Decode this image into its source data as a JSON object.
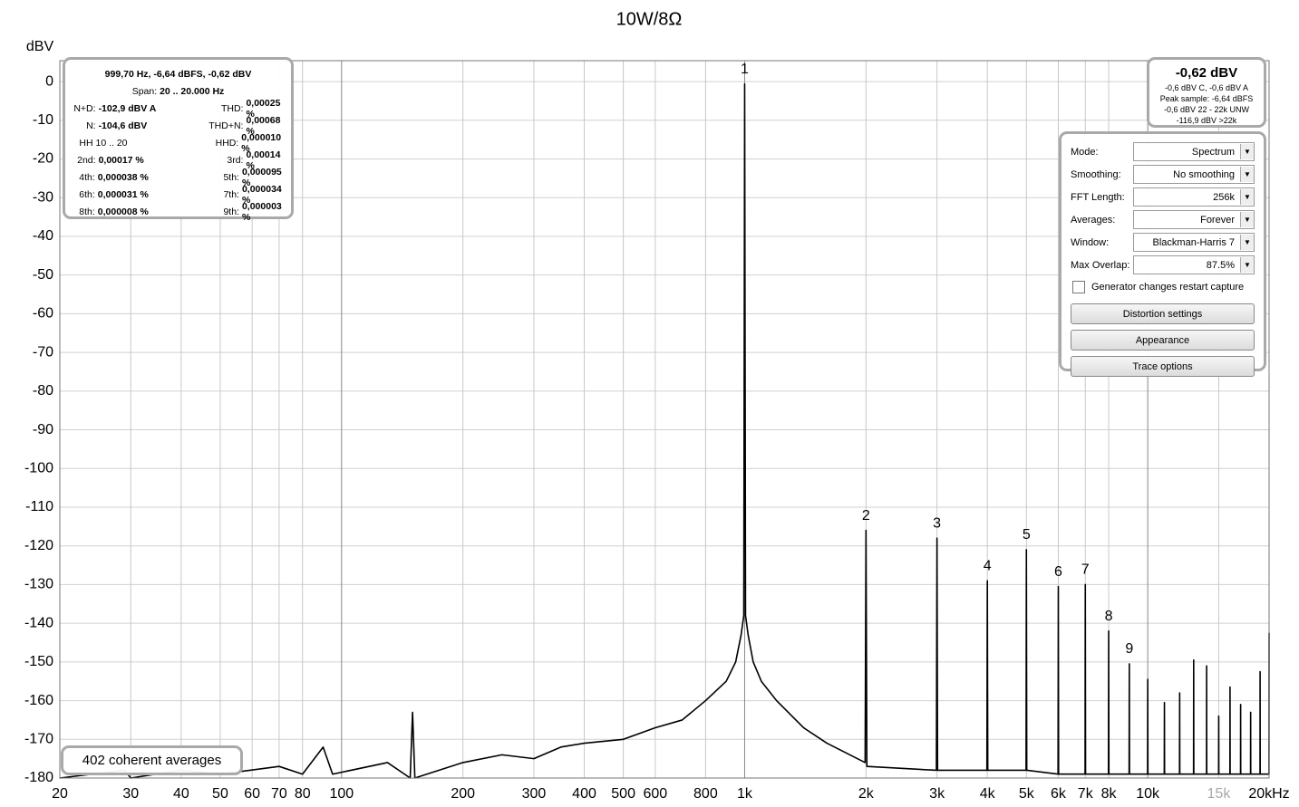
{
  "chart_data": {
    "type": "line",
    "title": "10W/8Ω",
    "y_label": "dBV",
    "log_x": true,
    "grid": true,
    "color": "#000000",
    "xlim": [
      20,
      20000
    ],
    "ylim": [
      -180,
      5.4
    ],
    "xticks": [
      20,
      30,
      40,
      50,
      60,
      70,
      80,
      100,
      200,
      300,
      400,
      500,
      600,
      800,
      {
        "value": 1000,
        "label": "1k"
      },
      {
        "value": 2000,
        "label": "2k"
      },
      {
        "value": 3000,
        "label": "3k"
      },
      {
        "value": 4000,
        "label": "4k"
      },
      {
        "value": 5000,
        "label": "5k"
      },
      {
        "value": 6000,
        "label": "6k"
      },
      {
        "value": 7000,
        "label": "7k"
      },
      {
        "value": 8000,
        "label": "8k"
      },
      {
        "value": 10000,
        "label": "10k"
      },
      {
        "value": 15000,
        "label": "15k",
        "color": "#aaaaaa"
      },
      {
        "value": 20000,
        "label": "20kHz"
      }
    ],
    "yticks": [
      0,
      -10,
      -20,
      -30,
      -40,
      -50,
      -60,
      -70,
      -80,
      -90,
      -100,
      -110,
      -120,
      -130,
      -140,
      -150,
      -160,
      -170,
      -180
    ],
    "x": [
      20,
      29,
      30,
      40,
      50,
      70,
      80,
      90,
      95,
      130,
      148,
      150,
      152,
      200,
      250,
      300,
      350,
      400,
      500,
      600,
      700,
      800,
      900,
      950,
      980,
      995,
      1000,
      1005,
      1020,
      1050,
      1100,
      1200,
      1400,
      1600,
      1990,
      2000,
      2010,
      2990,
      3000,
      3010,
      3990,
      4000,
      4010,
      4990,
      5000,
      5010,
      5990,
      6000,
      6010,
      6990,
      7000,
      7010,
      7990,
      8000,
      8010,
      8990,
      9000,
      9010,
      9990,
      10000,
      10010,
      10990,
      11000,
      11010,
      11990,
      12000,
      12010,
      12990,
      13000,
      13010,
      13990,
      14000,
      14010,
      14990,
      15000,
      15010,
      15990,
      16000,
      16010,
      16990,
      17000,
      17010,
      17990,
      18000,
      18010,
      18990,
      19000,
      19010,
      19990,
      20000
    ],
    "series": [
      {
        "name": "Spectrum",
        "color": "#000000",
        "values": [
          -180,
          -178,
          -180,
          -178,
          -179,
          -177,
          -179,
          -172,
          -179,
          -176,
          -180,
          -163,
          -180,
          -176,
          -174,
          -175,
          -172,
          -171,
          -170,
          -167,
          -165,
          -160,
          -155,
          -150,
          -143,
          -138,
          -0.6,
          -138,
          -143,
          -150,
          -155,
          -160,
          -167,
          -171,
          -176,
          -116,
          -177,
          -178,
          -118,
          -178,
          -178,
          -129,
          -178,
          -178,
          -121,
          -178,
          -179,
          -130.5,
          -179,
          -179,
          -130,
          -179,
          -179,
          -142,
          -179,
          -179,
          -150.5,
          -179,
          -179,
          -154.5,
          -179,
          -179,
          -160.5,
          -179,
          -179,
          -158,
          -179,
          -179,
          -149.5,
          -179,
          -179,
          -151,
          -179,
          -179,
          -164,
          -179,
          -179,
          -156.5,
          -179,
          -179,
          -161,
          -179,
          -179,
          -163,
          -179,
          -179,
          -152.5,
          -179,
          -179,
          -142.5
        ]
      }
    ],
    "annotations": [
      {
        "text": "1",
        "x": 1000,
        "y": -0.6
      },
      {
        "text": "2",
        "x": 2000,
        "y": -116
      },
      {
        "text": "3",
        "x": 3000,
        "y": -118
      },
      {
        "text": "4",
        "x": 4000,
        "y": -129
      },
      {
        "text": "5",
        "x": 5000,
        "y": -121
      },
      {
        "text": "6",
        "x": 6000,
        "y": -130.5
      },
      {
        "text": "7",
        "x": 7000,
        "y": -130
      },
      {
        "text": "8",
        "x": 8000,
        "y": -142
      },
      {
        "text": "9",
        "x": 9000,
        "y": -150.5
      }
    ]
  },
  "readout": {
    "header": "999,70 Hz, -6,64 dBFS, -0,62 dBV",
    "span_label": "Span:",
    "span": "20 .. 20.000 Hz",
    "rows": [
      [
        "N+D:",
        "-102,9 dBV A",
        "THD:",
        "0,00025 %"
      ],
      [
        "N:",
        "-104,6 dBV",
        "THD+N:",
        "0,00068 %"
      ],
      [
        "HH 10 .. 20",
        "HHD:",
        "0,000010 %"
      ],
      [
        "2nd:",
        "0,00017 %",
        "3rd:",
        "0,00014 %"
      ],
      [
        "4th:",
        "0,000038 %",
        "5th:",
        "0,000095 %"
      ],
      [
        "6th:",
        "0,000031 %",
        "7th:",
        "0,000034 %"
      ],
      [
        "8th:",
        "0,000008 %",
        "9th:",
        "0,000003 %"
      ]
    ]
  },
  "level": {
    "value": "-0,62 dBV",
    "lines": [
      "-0,6 dBV C, -0,6 dBV A",
      "Peak sample: -6,64 dBFS",
      "-0,6 dBV 22 - 22k UNW",
      "-116,9 dBV >22k"
    ]
  },
  "controls": [
    {
      "label": "Mode:",
      "value": "Spectrum"
    },
    {
      "label": "Smoothing:",
      "value": "No  smoothing"
    },
    {
      "label": "FFT Length:",
      "value": "256k"
    },
    {
      "label": "Averages:",
      "value": "Forever"
    },
    {
      "label": "Window:",
      "value": "Blackman-Harris 7"
    },
    {
      "label": "Max Overlap:",
      "value": "87.5%"
    }
  ],
  "checkbox": "Generator changes restart capture",
  "buttons": [
    "Distortion settings",
    "Appearance",
    "Trace options"
  ],
  "footer": "402 coherent averages"
}
